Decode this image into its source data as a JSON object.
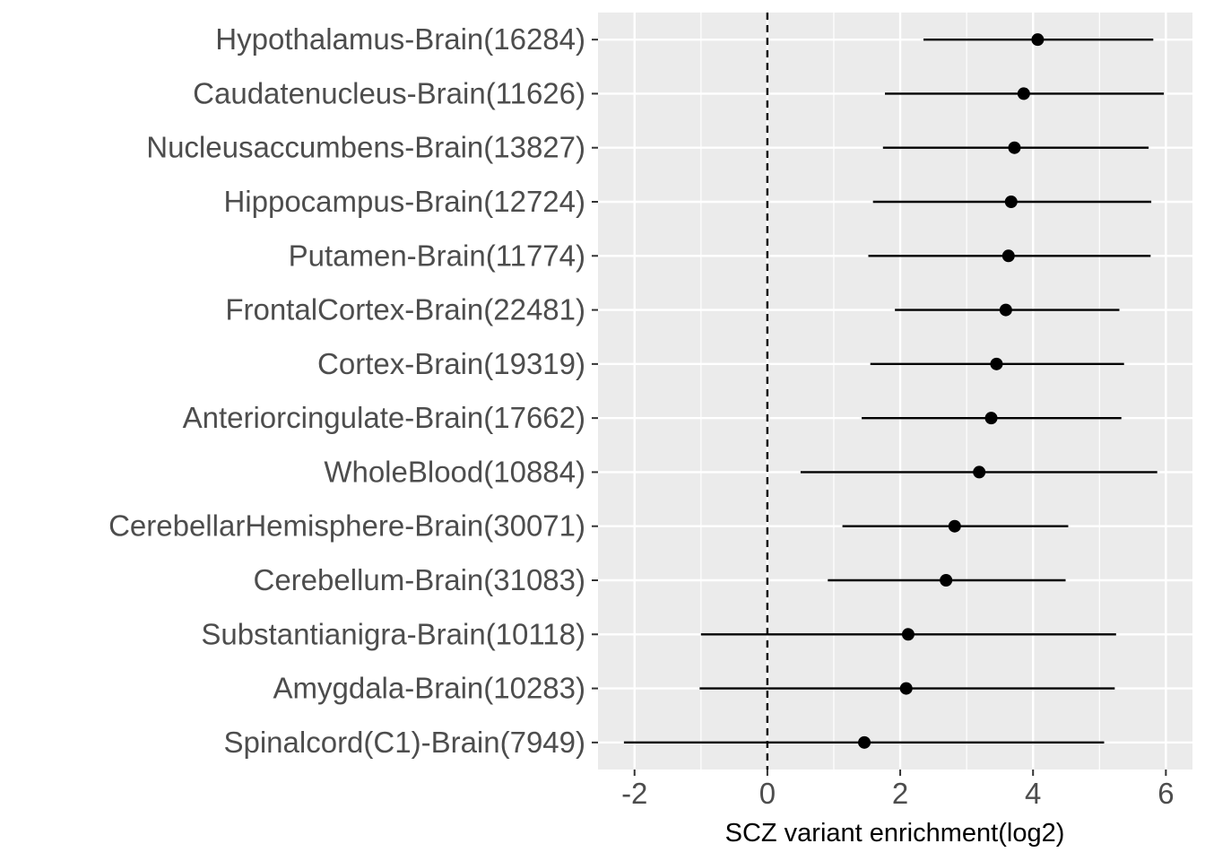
{
  "chart_data": {
    "type": "scatter",
    "subtype": "forest-plot",
    "title": "",
    "xlabel": "SCZ variant enrichment(log2)",
    "ylabel": "",
    "xlim": [
      -2.55,
      6.4
    ],
    "xticks": [
      -2,
      0,
      2,
      4,
      6
    ],
    "xtick_labels": [
      "-2",
      "0",
      "2",
      "4",
      "6"
    ],
    "grid": true,
    "legend": "none",
    "reference_line": {
      "x": 0,
      "style": "dashed",
      "color": "#000000"
    },
    "colors": {
      "panel_bg": "#ebebeb",
      "grid": "#ffffff",
      "point": "#000000",
      "tick_text": "#4d4d4d",
      "title_text": "#000000"
    },
    "categories": [
      "Hypothalamus-Brain(16284)",
      "Caudatenucleus-Brain(11626)",
      "Nucleusaccumbens-Brain(13827)",
      "Hippocampus-Brain(12724)",
      "Putamen-Brain(11774)",
      "FrontalCortex-Brain(22481)",
      "Cortex-Brain(19319)",
      "Anteriorcingulate-Brain(17662)",
      "WholeBlood(10884)",
      "CerebellarHemisphere-Brain(30071)",
      "Cerebellum-Brain(31083)",
      "Substantianigra-Brain(10118)",
      "Amygdala-Brain(10283)",
      "Spinalcord(C1)-Brain(7949)"
    ],
    "estimate": [
      4.07,
      3.86,
      3.72,
      3.67,
      3.63,
      3.59,
      3.45,
      3.37,
      3.19,
      2.82,
      2.69,
      2.12,
      2.09,
      1.46
    ],
    "lower": [
      2.35,
      1.77,
      1.74,
      1.59,
      1.52,
      1.92,
      1.55,
      1.42,
      0.5,
      1.13,
      0.91,
      -1.0,
      -1.02,
      -2.16
    ],
    "upper": [
      5.81,
      5.97,
      5.74,
      5.78,
      5.77,
      5.3,
      5.37,
      5.33,
      5.87,
      4.53,
      4.49,
      5.25,
      5.23,
      5.07
    ]
  }
}
